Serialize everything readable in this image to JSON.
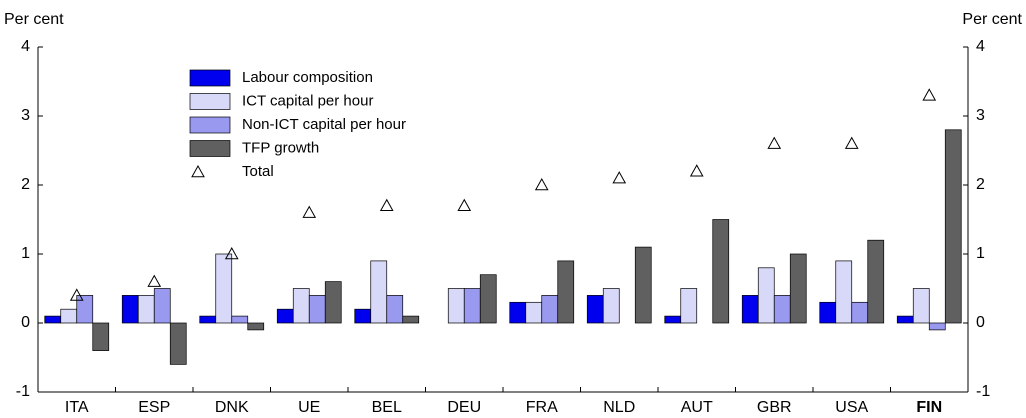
{
  "chart_data": {
    "type": "bar",
    "y_label": "Per cent",
    "y2_label": "Per cent",
    "categories": [
      "ITA",
      "ESP",
      "DNK",
      "UE",
      "BEL",
      "DEU",
      "FRA",
      "NLD",
      "AUT",
      "GBR",
      "USA",
      "FIN"
    ],
    "bold_categories": [
      11
    ],
    "series": [
      {
        "name": "Labour composition",
        "color": "#0000ee",
        "values": [
          0.1,
          0.4,
          0.1,
          0.2,
          0.2,
          0,
          0.3,
          0.4,
          0.1,
          0.4,
          0.3,
          0.1
        ]
      },
      {
        "name": "ICT capital per hour",
        "color": "#d8d8f8",
        "values": [
          0.2,
          0.4,
          1.0,
          0.5,
          0.9,
          0.5,
          0.3,
          0.5,
          0.5,
          0.8,
          0.9,
          0.5
        ]
      },
      {
        "name": "Non-ICT capital per hour",
        "color": "#9999f0",
        "values": [
          0.4,
          0.5,
          0.1,
          0.4,
          0.4,
          0.5,
          0.4,
          0,
          0,
          0.4,
          0.3,
          -0.1
        ]
      },
      {
        "name": "TFP growth",
        "color": "#606060",
        "values": [
          -0.4,
          -0.6,
          -0.1,
          0.6,
          0.1,
          0.7,
          0.9,
          1.1,
          1.5,
          1.0,
          1.2,
          2.8
        ]
      },
      {
        "name": "Total",
        "color": "#000000",
        "marker": "triangle",
        "values": [
          0.4,
          0.6,
          1.0,
          1.6,
          1.7,
          1.7,
          2.0,
          2.1,
          2.2,
          2.6,
          2.6,
          3.3
        ]
      }
    ],
    "ylim": [
      -1,
      4
    ],
    "yticks": [
      -1,
      0,
      1,
      2,
      3,
      4
    ],
    "y2lim": [
      -1,
      4
    ],
    "y2ticks": [
      -1,
      0,
      1,
      2,
      3,
      4
    ],
    "legend": "upper-left",
    "grid": false
  }
}
